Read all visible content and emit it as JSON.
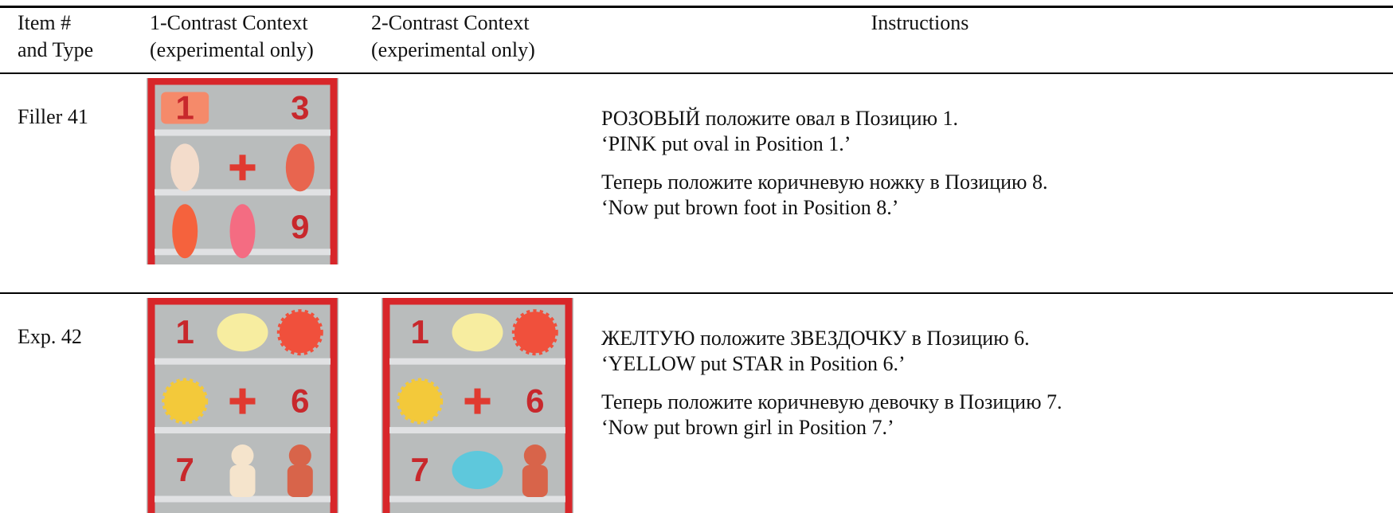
{
  "table": {
    "header": [
      [
        "Item #",
        "and Type"
      ],
      [
        "1-Contrast Context",
        "(experimental only)"
      ],
      [
        "2-Contrast Context",
        "(experimental only)"
      ],
      [
        "Instructions"
      ]
    ],
    "rows": [
      {
        "item": "Filler 41",
        "photos": [
          {
            "numbers": [
              "1",
              "3",
              "9"
            ]
          }
        ],
        "instructions": [
          [
            "РОЗОВЫЙ положите овал в Позицию 1.",
            "‘PINK put oval in Position 1.’"
          ],
          [
            "Теперь положите коричневую ножку в Позицию 8.",
            "‘Now put brown foot in Position 8.’"
          ]
        ]
      },
      {
        "item": "Exp. 42",
        "photos": [
          {
            "numbers": [
              "1",
              "6",
              "7"
            ]
          },
          {
            "numbers": [
              "1",
              "6",
              "7"
            ]
          }
        ],
        "instructions": [
          [
            "ЖЕЛТУЮ положите ЗВЕЗДОЧКУ в Позицию 6.",
            "‘YELLOW put STAR in Position 6.’"
          ],
          [
            "Теперь положите коричневую девочку в Позицию 7.",
            "‘Now put brown girl in Position 7.’"
          ]
        ]
      }
    ]
  }
}
